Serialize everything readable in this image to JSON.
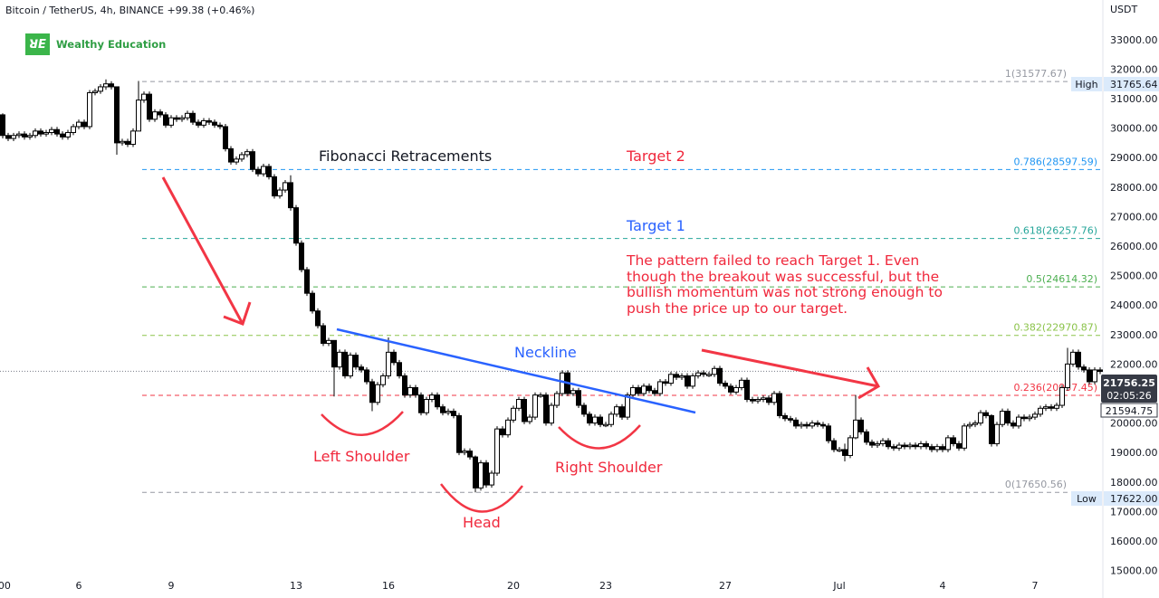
{
  "header": {
    "symbol_line": "Bitcoin / TetherUS, 4h, BINANCE  +99.38 (+0.46%)"
  },
  "logo": {
    "mark": "WE",
    "name": "Wealthy Education"
  },
  "axis": {
    "unit": "USDT"
  },
  "annotations": {
    "fib_title": "Fibonacci Retracements",
    "target2": "Target 2",
    "target1": "Target 1",
    "note": [
      "The pattern failed to reach Target 1. Even",
      "though the breakout was successful, but the",
      "bullish momentum was not strong enough to",
      "push the price up to our target."
    ],
    "neckline": "Neckline",
    "left_shoulder": "Left Shoulder",
    "head": "Head",
    "right_shoulder": "Right Shoulder"
  },
  "colors": {
    "annotation_red": "#f0283c",
    "annotation_blue": "#2962ff",
    "logo_green": "#3bb54a"
  },
  "chart_data": {
    "type": "candlestick",
    "title": "Bitcoin / TetherUS, 4h, BINANCE",
    "ylim": [
      14800,
      33300
    ],
    "y_ticks": [
      33000,
      32000,
      31000,
      30000,
      29000,
      28000,
      27000,
      26000,
      25000,
      24000,
      23000,
      22000,
      20000,
      19000,
      18000,
      17000,
      16000,
      15000
    ],
    "x_ticks": [
      {
        "label": ":00",
        "index": 0
      },
      {
        "label": "6",
        "index": 14
      },
      {
        "label": "9",
        "index": 31
      },
      {
        "label": "13",
        "index": 54
      },
      {
        "label": "16",
        "index": 71
      },
      {
        "label": "20",
        "index": 94
      },
      {
        "label": "23",
        "index": 111
      },
      {
        "label": "27",
        "index": 133
      },
      {
        "label": "Jul",
        "index": 154
      },
      {
        "label": "4",
        "index": 173
      },
      {
        "label": "7",
        "index": 190
      }
    ],
    "first_open": 30450,
    "closes": [
      29750,
      29650,
      29750,
      29800,
      29700,
      29750,
      29900,
      29800,
      29850,
      29950,
      29800,
      29700,
      29850,
      30050,
      30200,
      30050,
      31200,
      31250,
      31400,
      31500,
      31400,
      29500,
      29550,
      29450,
      29900,
      30950,
      31150,
      30300,
      30550,
      30450,
      30100,
      30350,
      30300,
      30350,
      30500,
      30200,
      30100,
      30250,
      30200,
      30100,
      30050,
      29300,
      28850,
      28950,
      29100,
      29200,
      28600,
      28450,
      28700,
      28350,
      27700,
      27900,
      28150,
      27300,
      26100,
      25200,
      24400,
      23800,
      23300,
      22700,
      22800,
      21900,
      22400,
      21600,
      22300,
      21900,
      21800,
      21400,
      20700,
      21300,
      21600,
      22400,
      22050,
      21600,
      20950,
      21200,
      20950,
      20350,
      20800,
      20950,
      20550,
      20350,
      20400,
      20250,
      19000,
      19050,
      18850,
      17800,
      18650,
      17900,
      18300,
      19800,
      19600,
      20100,
      20500,
      20800,
      20050,
      20200,
      20950,
      20950,
      20000,
      20600,
      21000,
      21700,
      21000,
      21100,
      20600,
      20300,
      20000,
      20200,
      19950,
      19950,
      20300,
      20550,
      20200,
      20950,
      21200,
      21000,
      21250,
      21100,
      21000,
      21400,
      21350,
      21650,
      21550,
      21600,
      21250,
      21600,
      21700,
      21650,
      21650,
      21850,
      21350,
      21250,
      21050,
      21200,
      21450,
      20800,
      20750,
      20800,
      20850,
      20700,
      21000,
      20250,
      20150,
      20100,
      19900,
      19950,
      19900,
      20000,
      19950,
      19900,
      19400,
      19100,
      19100,
      18900,
      19500,
      20100,
      19700,
      19350,
      19250,
      19300,
      19400,
      19200,
      19150,
      19250,
      19200,
      19250,
      19200,
      19300,
      19200,
      19100,
      19200,
      19100,
      19500,
      19300,
      19150,
      19900,
      19950,
      20000,
      20350,
      20250,
      19300,
      19950,
      20400,
      20000,
      19900,
      20200,
      20150,
      20200,
      20300,
      20500,
      20550,
      20500,
      20600,
      21200,
      22000,
      22400,
      21900,
      21800,
      21400,
      21800,
      21750
    ],
    "long_wicks": {
      "0": [
        30500,
        29650
      ],
      "19": [
        31650,
        31300
      ],
      "21": [
        31400,
        29100
      ],
      "25": [
        31600,
        30700
      ],
      "53": [
        28400,
        27200
      ],
      "61": [
        22800,
        20900
      ],
      "68": [
        21500,
        20400
      ],
      "71": [
        22900,
        21500
      ],
      "87": [
        18900,
        17650
      ],
      "155": [
        19300,
        18700
      ],
      "157": [
        20950,
        19450
      ],
      "182": [
        20300,
        19200
      ],
      "196": [
        22550,
        21100
      ]
    },
    "fib_levels": [
      {
        "level": "1",
        "price": 31577.67,
        "label": "1(31577.67)",
        "color": "#9598a1"
      },
      {
        "level": "0.786",
        "price": 28597.59,
        "label": "0.786(28597.59)",
        "color": "#2196f3"
      },
      {
        "level": "0.618",
        "price": 26257.76,
        "label": "0.618(26257.76)",
        "color": "#26a69a"
      },
      {
        "level": "0.5",
        "price": 24614.32,
        "label": "0.5(24614.32)",
        "color": "#4caf50"
      },
      {
        "level": "0.382",
        "price": 22970.87,
        "label": "0.382(22970.87)",
        "color": "#8bc34a"
      },
      {
        "level": "0.236",
        "price": 20937.45,
        "label": "0.236(20937.45)",
        "color": "#f23645"
      },
      {
        "level": "0",
        "price": 17650.56,
        "label": "0(17650.56)",
        "color": "#9598a1"
      }
    ],
    "high": {
      "tag": "High",
      "value": "31765.64"
    },
    "low": {
      "tag": "Low",
      "value": "17622.00"
    },
    "last_price": {
      "value": "21756.25",
      "price": 21756.25,
      "countdown": "02:05:26"
    },
    "prev_price": {
      "value": "21594.75"
    },
    "neckline": {
      "start": {
        "index": 62,
        "price": 22700
      },
      "end": {
        "index": 127,
        "price": 19900
      }
    }
  }
}
